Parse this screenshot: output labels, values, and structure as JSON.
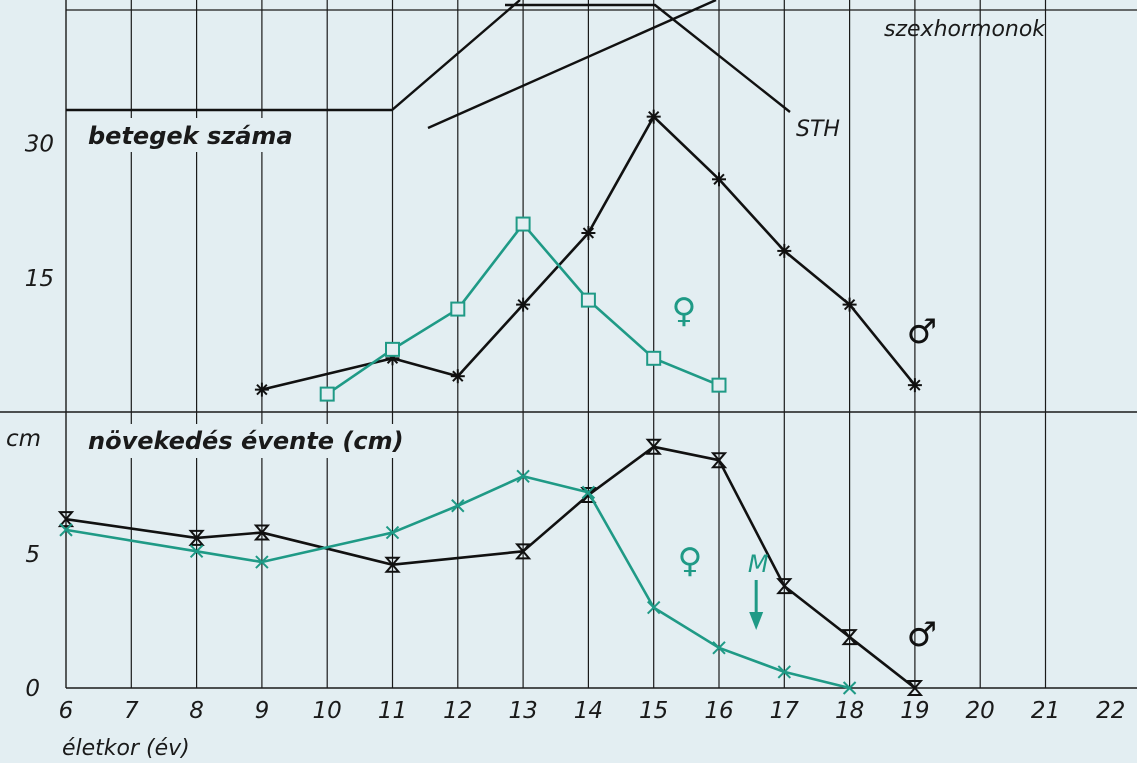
{
  "colors": {
    "male": "#111111",
    "female": "#1f9a86",
    "background": "#e3eef2",
    "grid": "#1a1a1a"
  },
  "chart_data": [
    {
      "type": "line",
      "title": "betegek száma",
      "xlabel": "",
      "ylabel": "",
      "xlim": [
        6,
        22
      ],
      "ylim": [
        0,
        34
      ],
      "yticks": [
        "30",
        "15"
      ],
      "ytick_values": [
        30,
        15
      ],
      "series": [
        {
          "name": "♂",
          "marker": "asterisk",
          "x": [
            9,
            11,
            12,
            13,
            14,
            15,
            16,
            17,
            18,
            19
          ],
          "values": [
            2.5,
            6,
            4,
            12,
            20,
            33,
            26,
            18,
            12,
            3
          ]
        },
        {
          "name": "♀",
          "marker": "square",
          "x": [
            10,
            11,
            12,
            13,
            14,
            15,
            16
          ],
          "values": [
            2,
            7,
            11.5,
            21,
            12.5,
            6,
            3
          ]
        }
      ],
      "annotations": {
        "sex_hormones": "szexhormonok",
        "sth": "STH"
      }
    },
    {
      "type": "line",
      "title": "növekedés évente (cm)",
      "xlabel": "életkor (év)",
      "ylabel": "cm",
      "xlim": [
        6,
        22
      ],
      "ylim": [
        0,
        9.4
      ],
      "yticks": [
        "5",
        "0"
      ],
      "ytick_values": [
        5,
        0
      ],
      "xticks": [
        "6",
        "7",
        "8",
        "9",
        "10",
        "11",
        "12",
        "13",
        "14",
        "15",
        "16",
        "17",
        "18",
        "19",
        "20",
        "21",
        "22"
      ],
      "series": [
        {
          "name": "♂",
          "marker": "hourglass",
          "x": [
            6,
            8,
            9,
            11,
            13,
            14,
            15,
            16,
            17,
            18,
            19
          ],
          "values": [
            6.3,
            5.6,
            5.8,
            4.6,
            5.1,
            7.2,
            9.0,
            8.5,
            3.8,
            1.9,
            0
          ]
        },
        {
          "name": "♀",
          "marker": "x",
          "x": [
            6,
            8,
            9,
            11,
            12,
            13,
            14,
            15,
            16,
            17,
            18
          ],
          "values": [
            5.9,
            5.1,
            4.7,
            5.8,
            6.8,
            7.9,
            7.3,
            3.0,
            1.5,
            0.6,
            0
          ]
        }
      ],
      "annotations": {
        "menarche": "M",
        "menarche_age": 16.6
      }
    }
  ]
}
